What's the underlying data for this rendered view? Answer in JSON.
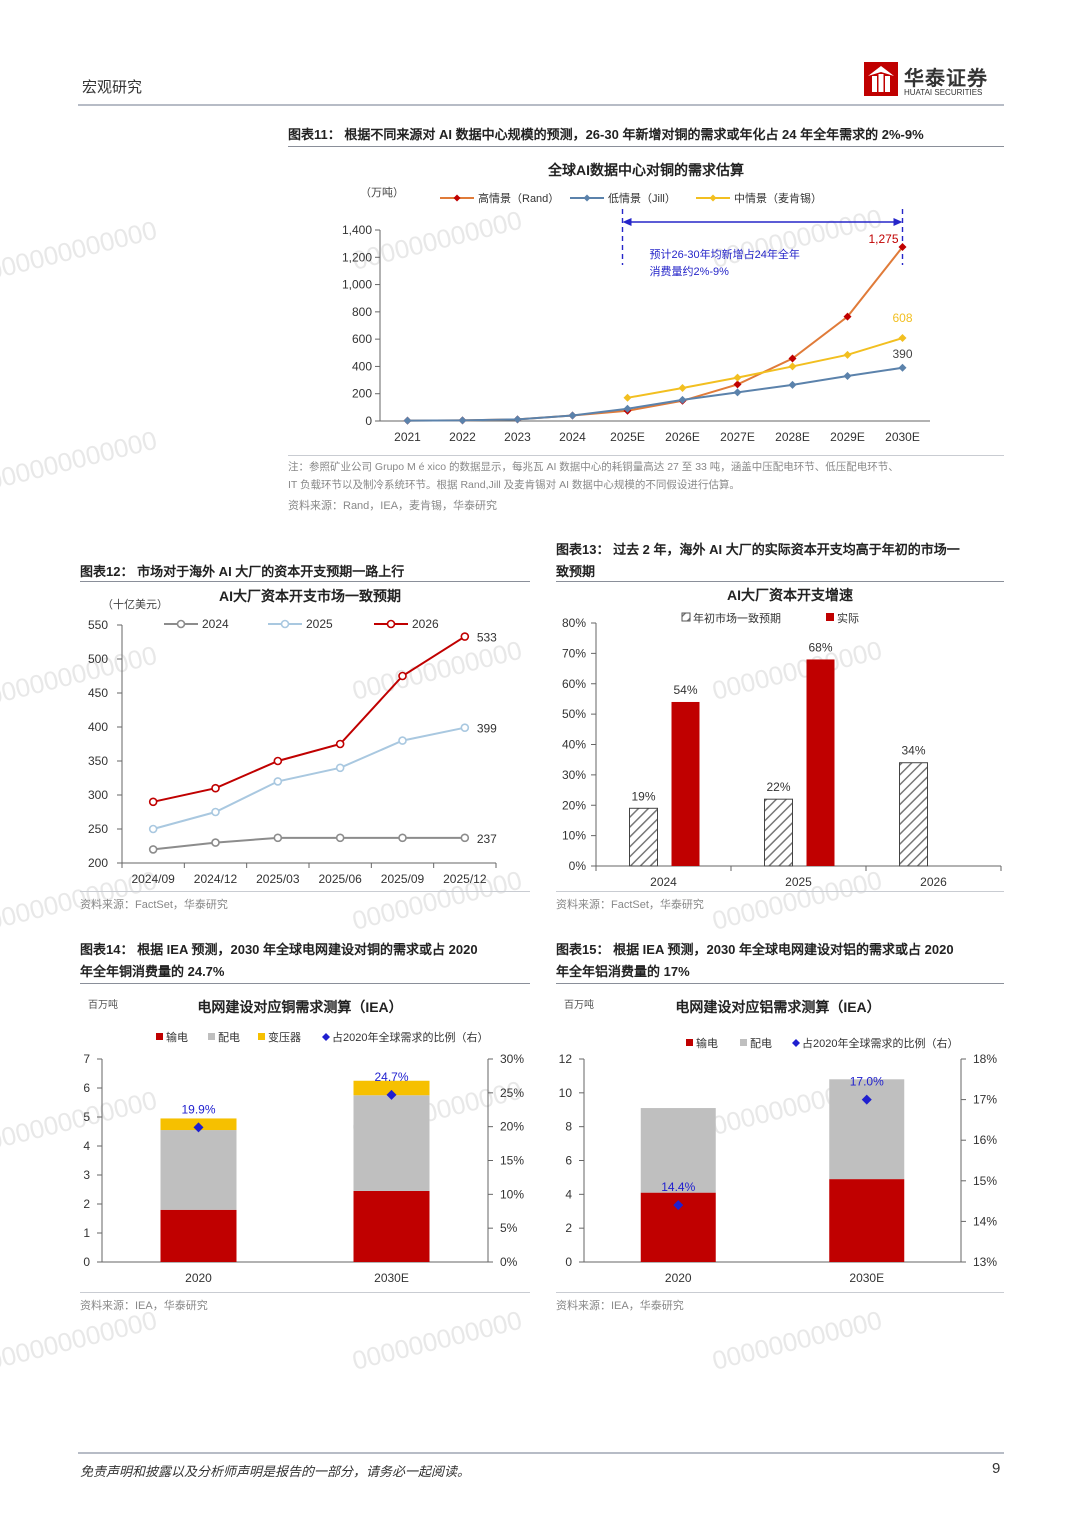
{
  "header": {
    "section": "宏观研究",
    "brand_cn": "华泰证券",
    "brand_en": "HUATAI SECURITIES"
  },
  "footer": {
    "disclaimer": "免责声明和披露以及分析师声明是报告的一部分，请务必一起阅读。",
    "page": "9"
  },
  "watermark": "000000000000",
  "fig11": {
    "caption": "图表11：  根据不同来源对 AI 数据中心规模的预测，26-30 年新增对铜的需求或年化占 24 年全年需求的 2%-9%",
    "note1": "注：参照矿业公司 Grupo M é xico 的数据显示，每兆瓦 AI 数据中心的耗铜量高达 27 至 33 吨，涵盖中压配电环节、低压配电环节、",
    "note2": "IT 负载环节以及制冷系统环节。根据 Rand,Jill 及麦肯锡对 AI 数据中心规模的不同假设进行估算。",
    "source": "资料来源：Rand，IEA，麦肯锡，华泰研究",
    "chart_data": {
      "type": "line",
      "title": "全球AI数据中心对铜的需求估算",
      "unit": "（万吨）",
      "categories": [
        "2021",
        "2022",
        "2023",
        "2024",
        "2025E",
        "2026E",
        "2027E",
        "2028E",
        "2029E",
        "2030E"
      ],
      "ylim": [
        0,
        1400
      ],
      "yticks": [
        "0",
        "200",
        "400",
        "600",
        "800",
        "1,000",
        "1,200",
        "1,400"
      ],
      "series": [
        {
          "name": "高情景（Rand）",
          "color": "#e07b39",
          "marker": "#c00000",
          "values": [
            3,
            5,
            12,
            40,
            75,
            148,
            268,
            458,
            765,
            1275
          ]
        },
        {
          "name": "低情景（Jill）",
          "color": "#5b82ab",
          "marker": "#5b82ab",
          "values": [
            3,
            5,
            12,
            40,
            90,
            155,
            210,
            265,
            330,
            390
          ]
        },
        {
          "name": "中情景（麦肯锡）",
          "color": "#f2bf20",
          "marker": "#f2bf20",
          "values": [
            null,
            null,
            null,
            null,
            170,
            242,
            318,
            400,
            485,
            608
          ]
        }
      ],
      "labels": {
        "high_end": "1,275",
        "mid_end": "608",
        "low_end": "390"
      },
      "annotation_line1": "预计26-30年均新增占24年全年",
      "annotation_line2": "消费量约2%-9%"
    }
  },
  "fig12": {
    "caption": "图表12：  市场对于海外 AI 大厂的资本开支预期一路上行",
    "source": "资料来源：FactSet，华泰研究",
    "chart_data": {
      "type": "line",
      "title": "AI大厂资本开支市场一致预期",
      "unit": "（十亿美元）",
      "categories": [
        "2024/09",
        "2024/12",
        "2025/03",
        "2025/06",
        "2025/09",
        "2025/12"
      ],
      "ylim": [
        200,
        550
      ],
      "yticks": [
        "200",
        "250",
        "300",
        "350",
        "400",
        "450",
        "500",
        "550"
      ],
      "series": [
        {
          "name": "2024",
          "color": "#8c8c8c",
          "values": [
            220,
            230,
            237,
            237,
            237,
            237
          ]
        },
        {
          "name": "2025",
          "color": "#a9c8e0",
          "values": [
            250,
            275,
            320,
            340,
            380,
            399
          ]
        },
        {
          "name": "2026",
          "color": "#c00000",
          "values": [
            290,
            310,
            350,
            375,
            475,
            533
          ]
        }
      ],
      "labels": [
        "237",
        "399",
        "533"
      ]
    }
  },
  "fig13": {
    "caption_line1": "图表13：  过去 2 年，海外 AI 大厂的实际资本开支均高于年初的市场一",
    "caption_line2": "致预期",
    "source": "资料来源：FactSet，华泰研究",
    "chart_data": {
      "type": "bar",
      "title": "AI大厂资本开支增速",
      "categories": [
        "2024",
        "2025",
        "2026"
      ],
      "ylim": [
        0,
        80
      ],
      "yticks": [
        "0%",
        "10%",
        "20%",
        "30%",
        "40%",
        "50%",
        "60%",
        "70%",
        "80%"
      ],
      "series": [
        {
          "name": "年初市场一致预期",
          "values": [
            19,
            22,
            34
          ],
          "labels": [
            "19%",
            "22%",
            "34%"
          ]
        },
        {
          "name": "实际",
          "color": "#c00000",
          "values": [
            54,
            68,
            null
          ],
          "labels": [
            "54%",
            "68%",
            ""
          ]
        }
      ]
    }
  },
  "fig14": {
    "caption_line1": "图表14：  根据 IEA 预测，2030 年全球电网建设对铜的需求或占 2020",
    "caption_line2": "年全年铜消费量的 24.7%",
    "source": "资料来源：IEA，华泰研究",
    "chart_data": {
      "type": "bar",
      "title": "电网建设对应铜需求测算（IEA）",
      "unit": "百万吨",
      "categories": [
        "2020",
        "2030E"
      ],
      "ylim": [
        0,
        7
      ],
      "y2lim": [
        0,
        30
      ],
      "yticks": [
        "0",
        "1",
        "2",
        "3",
        "4",
        "5",
        "6",
        "7"
      ],
      "y2ticks": [
        "0%",
        "5%",
        "10%",
        "15%",
        "20%",
        "25%",
        "30%"
      ],
      "series": [
        {
          "name": "输电",
          "color": "#c00000",
          "values": [
            1.8,
            2.45
          ]
        },
        {
          "name": "配电",
          "color": "#bfbfbf",
          "values": [
            2.75,
            3.3
          ]
        },
        {
          "name": "变压器",
          "color": "#f6c000",
          "values": [
            0.4,
            0.5
          ]
        },
        {
          "name": "占2020年全球需求的比例（右）",
          "color": "#1f1fcf",
          "values": [
            19.9,
            24.7
          ],
          "labels": [
            "19.9%",
            "24.7%"
          ]
        }
      ]
    }
  },
  "fig15": {
    "caption_line1": "图表15：  根据 IEA 预测，2030 年全球电网建设对铝的需求或占 2020",
    "caption_line2": "年全年铝消费量的 17%",
    "source": "资料来源：IEA，华泰研究",
    "chart_data": {
      "type": "bar",
      "title": "电网建设对应铝需求测算（IEA）",
      "unit": "百万吨",
      "categories": [
        "2020",
        "2030E"
      ],
      "ylim": [
        0,
        12
      ],
      "y2lim": [
        13,
        18
      ],
      "yticks": [
        "0",
        "2",
        "4",
        "6",
        "8",
        "10",
        "12"
      ],
      "y2ticks": [
        "13%",
        "14%",
        "15%",
        "16%",
        "17%",
        "18%"
      ],
      "series": [
        {
          "name": "输电",
          "color": "#c00000",
          "values": [
            4.1,
            4.9
          ]
        },
        {
          "name": "配电",
          "color": "#bfbfbf",
          "values": [
            5.0,
            5.9
          ]
        },
        {
          "name": "占2020年全球需求的比例（右）",
          "color": "#1f1fcf",
          "values": [
            14.4,
            17.0
          ],
          "labels": [
            "14.4%",
            "17.0%"
          ]
        }
      ]
    }
  }
}
